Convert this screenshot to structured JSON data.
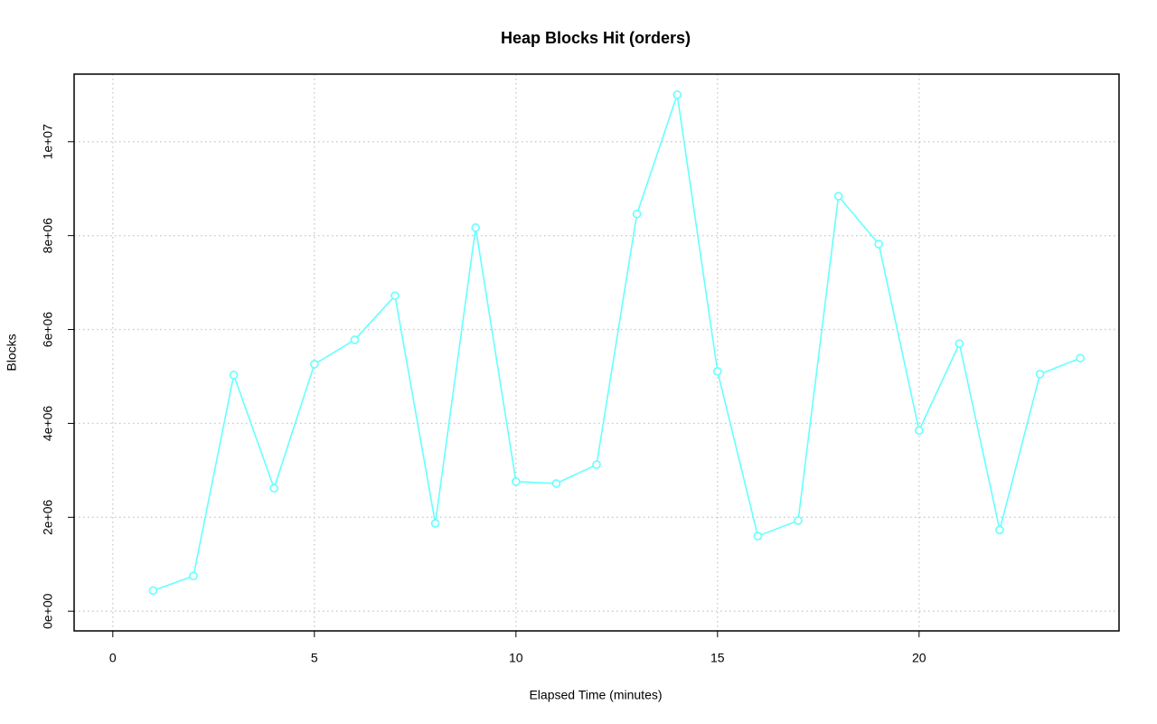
{
  "chart_data": {
    "type": "line",
    "title": "Heap Blocks Hit (orders)",
    "x_label": "Elapsed Time (minutes)",
    "y_label": "Blocks",
    "x": [
      1,
      2,
      3,
      4,
      5,
      6,
      7,
      8,
      9,
      10,
      11,
      12,
      13,
      14,
      15,
      16,
      17,
      18,
      19,
      20,
      21,
      22,
      23,
      24
    ],
    "series": [
      {
        "color": "#66ffff",
        "values": [
          440000,
          750000,
          5030000,
          2620000,
          5260000,
          5780000,
          6720000,
          1870000,
          8170000,
          2760000,
          2720000,
          3120000,
          8460000,
          11000000,
          5110000,
          1600000,
          1930000,
          8840000,
          7820000,
          3850000,
          5700000,
          1730000,
          5050000,
          5390000
        ]
      }
    ],
    "xlim": [
      -0.96,
      24.96
    ],
    "ylim": [
      -420000,
      11440000
    ],
    "xticks": [
      0,
      5,
      10,
      15,
      20
    ],
    "yticks": [
      {
        "value": 0,
        "label": "0e+00"
      },
      {
        "value": 2000000,
        "label": "2e+06"
      },
      {
        "value": 4000000,
        "label": "4e+06"
      },
      {
        "value": 6000000,
        "label": "6e+06"
      },
      {
        "value": 8000000,
        "label": "8e+06"
      },
      {
        "value": 10000000,
        "label": "1e+07"
      }
    ],
    "grid": true
  }
}
